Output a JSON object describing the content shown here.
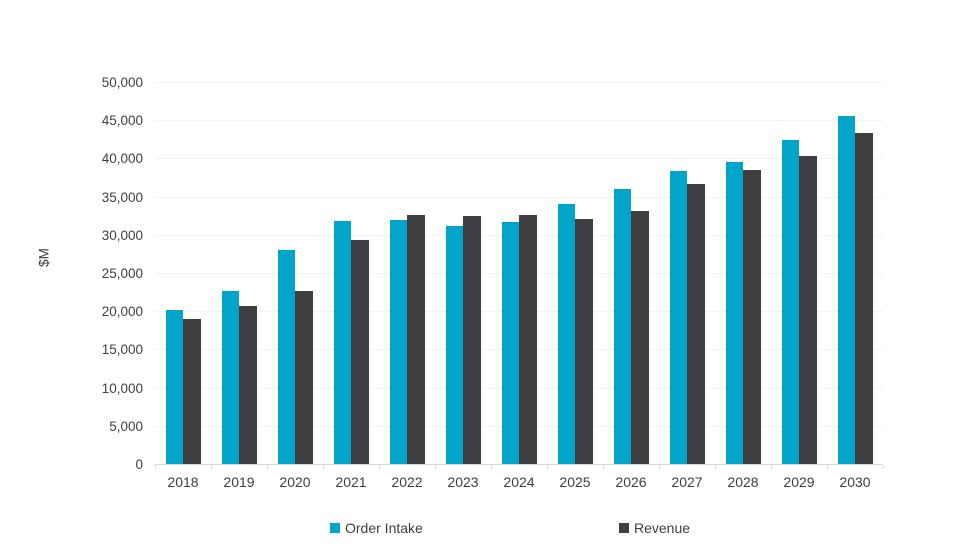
{
  "chart_data": {
    "type": "bar",
    "title": "",
    "xlabel": "",
    "ylabel": "$M",
    "categories": [
      "2018",
      "2019",
      "2020",
      "2021",
      "2022",
      "2023",
      "2024",
      "2025",
      "2026",
      "2027",
      "2028",
      "2029",
      "2030"
    ],
    "series": [
      {
        "name": "Order Intake",
        "color": "#00A5C9",
        "values": [
          20200,
          22700,
          28000,
          31800,
          32000,
          31200,
          31700,
          34000,
          36000,
          38400,
          39500,
          42400,
          45600
        ]
      },
      {
        "name": "Revenue",
        "color": "#3F3E43",
        "values": [
          19000,
          20700,
          22700,
          29300,
          32600,
          32500,
          32600,
          32100,
          33100,
          36600,
          38500,
          40300,
          43300
        ]
      }
    ],
    "ylim": [
      0,
      50000
    ],
    "ytick_step": 5000,
    "grid": true,
    "legend_position": "bottom",
    "colors": {
      "gridline": "#F2F2F2",
      "axis_line": "#D9D9D9",
      "label_text": "#3F3F3F"
    }
  }
}
